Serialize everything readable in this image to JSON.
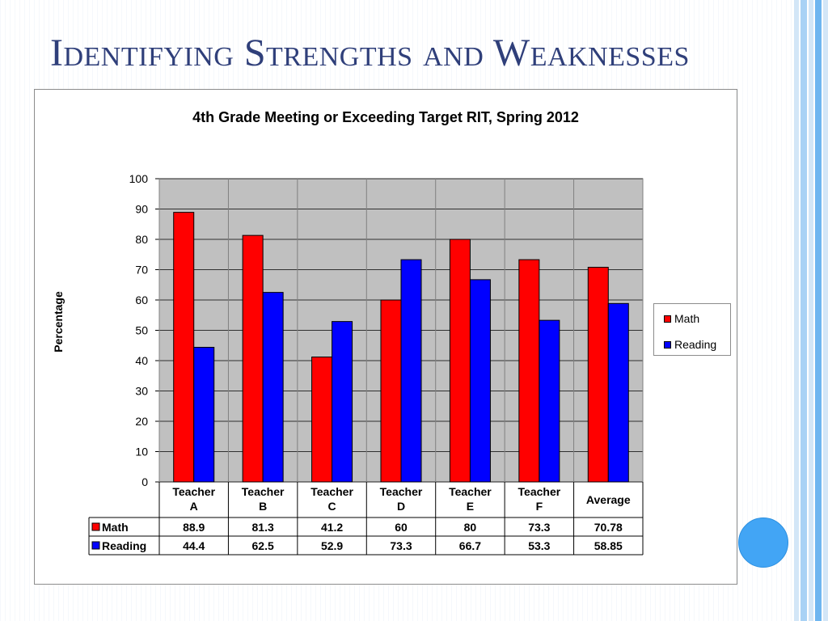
{
  "slide": {
    "title": "Identifying Strengths and Weaknesses"
  },
  "colors": {
    "math": "#ff0000",
    "reading": "#0000ff",
    "plot_bg": "#c0c0c0",
    "title": "#2f3f7a",
    "stripe_light": "#d3e6f7",
    "stripe_mid": "#a9d2f5",
    "stripe_dark": "#6fb6f0",
    "circle": "#42a5f5"
  },
  "chart_data": {
    "type": "bar",
    "title": "4th Grade Meeting or Exceeding Target RIT, Spring 2012",
    "xlabel": "",
    "ylabel": "Percentage",
    "ylim": [
      0,
      100
    ],
    "yticks": [
      0,
      10,
      20,
      30,
      40,
      50,
      60,
      70,
      80,
      90,
      100
    ],
    "grid": true,
    "legend_position": "right",
    "categories": [
      [
        "Teacher",
        "A"
      ],
      [
        "Teacher",
        "B"
      ],
      [
        "Teacher",
        "C"
      ],
      [
        "Teacher",
        "D"
      ],
      [
        "Teacher",
        "E"
      ],
      [
        "Teacher",
        "F"
      ],
      [
        "Average"
      ]
    ],
    "series": [
      {
        "name": "Math",
        "values": [
          88.9,
          81.3,
          41.2,
          60,
          80,
          73.3,
          70.78
        ]
      },
      {
        "name": "Reading",
        "values": [
          44.4,
          62.5,
          52.9,
          73.3,
          66.7,
          53.3,
          58.85
        ]
      }
    ],
    "table_values": [
      [
        "88.9",
        "81.3",
        "41.2",
        "60",
        "80",
        "73.3",
        "70.78"
      ],
      [
        "44.4",
        "62.5",
        "52.9",
        "73.3",
        "66.7",
        "53.3",
        "58.85"
      ]
    ]
  }
}
